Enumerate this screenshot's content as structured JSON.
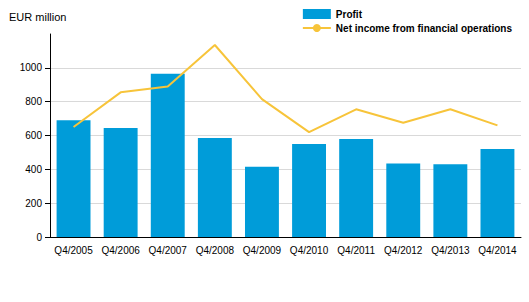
{
  "chart_data": {
    "type": "bar",
    "ylabel": "EUR million",
    "categories": [
      "Q4/2005",
      "Q4/2006",
      "Q4/2007",
      "Q4/2008",
      "Q4/2009",
      "Q4/2010",
      "Q4/2011",
      "Q4/2012",
      "Q4/2013",
      "Q4/2014"
    ],
    "series": [
      {
        "name": "Profit",
        "type": "bar",
        "color": "#009cd9",
        "values": [
          690,
          645,
          965,
          585,
          415,
          550,
          580,
          435,
          430,
          520
        ]
      },
      {
        "name": "Net income from financial operations",
        "type": "line",
        "color": "#f7c43a",
        "marker": "none",
        "line_style": "solid",
        "values": [
          650,
          855,
          890,
          1135,
          815,
          620,
          755,
          675,
          755,
          660
        ]
      }
    ],
    "ylim": [
      0,
      1200
    ],
    "yticks": [
      0,
      200,
      400,
      600,
      800,
      1000
    ],
    "grid": true,
    "legend": "top right"
  }
}
